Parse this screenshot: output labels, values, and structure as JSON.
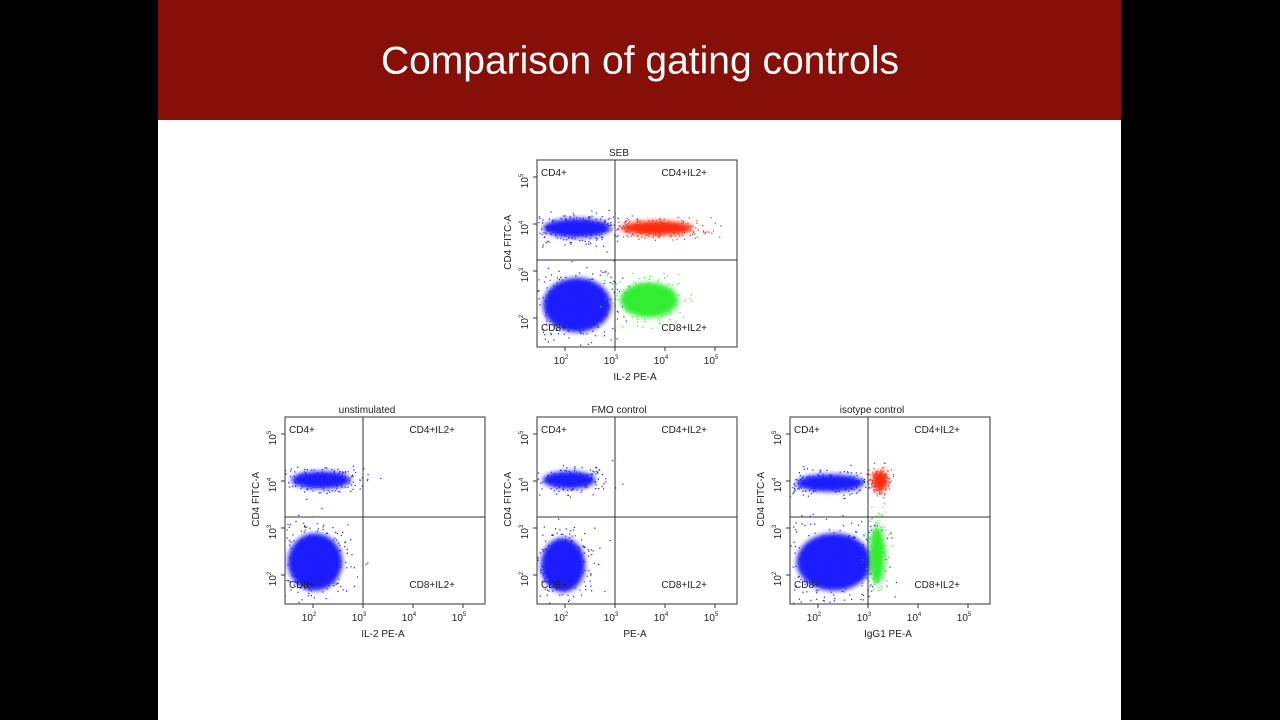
{
  "header": {
    "title": "Comparison of gating controls"
  },
  "plots": [
    {
      "title": "SEB",
      "y_label": "CD4 FITC-A",
      "x_label": "IL-2 PE-A",
      "quadrants": [
        "CD4+",
        "CD4+IL2+",
        "CD8+",
        "CD8+IL2+"
      ],
      "x_ticks": [
        {
          "base": "10",
          "exp": "2"
        },
        {
          "base": "10",
          "exp": "3"
        },
        {
          "base": "10",
          "exp": "4"
        },
        {
          "base": "10",
          "exp": "5"
        }
      ],
      "y_ticks": [
        {
          "base": "10",
          "exp": "2"
        },
        {
          "base": "10",
          "exp": "3"
        },
        {
          "base": "10",
          "exp": "4"
        },
        {
          "base": "10",
          "exp": "5"
        }
      ]
    },
    {
      "title": "unstimulated",
      "y_label": "CD4 FITC-A",
      "x_label": "IL-2 PE-A",
      "quadrants": [
        "CD4+",
        "CD4+IL2+",
        "CD8+",
        "CD8+IL2+"
      ],
      "x_ticks": [
        {
          "base": "10",
          "exp": "2"
        },
        {
          "base": "10",
          "exp": "3"
        },
        {
          "base": "10",
          "exp": "4"
        },
        {
          "base": "10",
          "exp": "5"
        }
      ],
      "y_ticks": [
        {
          "base": "10",
          "exp": "2"
        },
        {
          "base": "10",
          "exp": "3"
        },
        {
          "base": "10",
          "exp": "4"
        },
        {
          "base": "10",
          "exp": "5"
        }
      ]
    },
    {
      "title": "FMO control",
      "y_label": "CD4 FITC-A",
      "x_label": "PE-A",
      "quadrants": [
        "CD4+",
        "CD4+IL2+",
        "CD8+",
        "CD8+IL2+"
      ],
      "x_ticks": [
        {
          "base": "10",
          "exp": "2"
        },
        {
          "base": "10",
          "exp": "3"
        },
        {
          "base": "10",
          "exp": "4"
        },
        {
          "base": "10",
          "exp": "5"
        }
      ],
      "y_ticks": [
        {
          "base": "10",
          "exp": "2"
        },
        {
          "base": "10",
          "exp": "3"
        },
        {
          "base": "10",
          "exp": "4"
        },
        {
          "base": "10",
          "exp": "5"
        }
      ]
    },
    {
      "title": "isotype control",
      "y_label": "CD4 FITC-A",
      "x_label": "IgG1 PE-A",
      "quadrants": [
        "CD4+",
        "CD4+IL2+",
        "CD8+",
        "CD8+IL2+"
      ],
      "x_ticks": [
        {
          "base": "10",
          "exp": "2"
        },
        {
          "base": "10",
          "exp": "3"
        },
        {
          "base": "10",
          "exp": "4"
        },
        {
          "base": "10",
          "exp": "5"
        }
      ],
      "y_ticks": [
        {
          "base": "10",
          "exp": "2"
        },
        {
          "base": "10",
          "exp": "3"
        },
        {
          "base": "10",
          "exp": "4"
        },
        {
          "base": "10",
          "exp": "5"
        }
      ]
    }
  ]
}
